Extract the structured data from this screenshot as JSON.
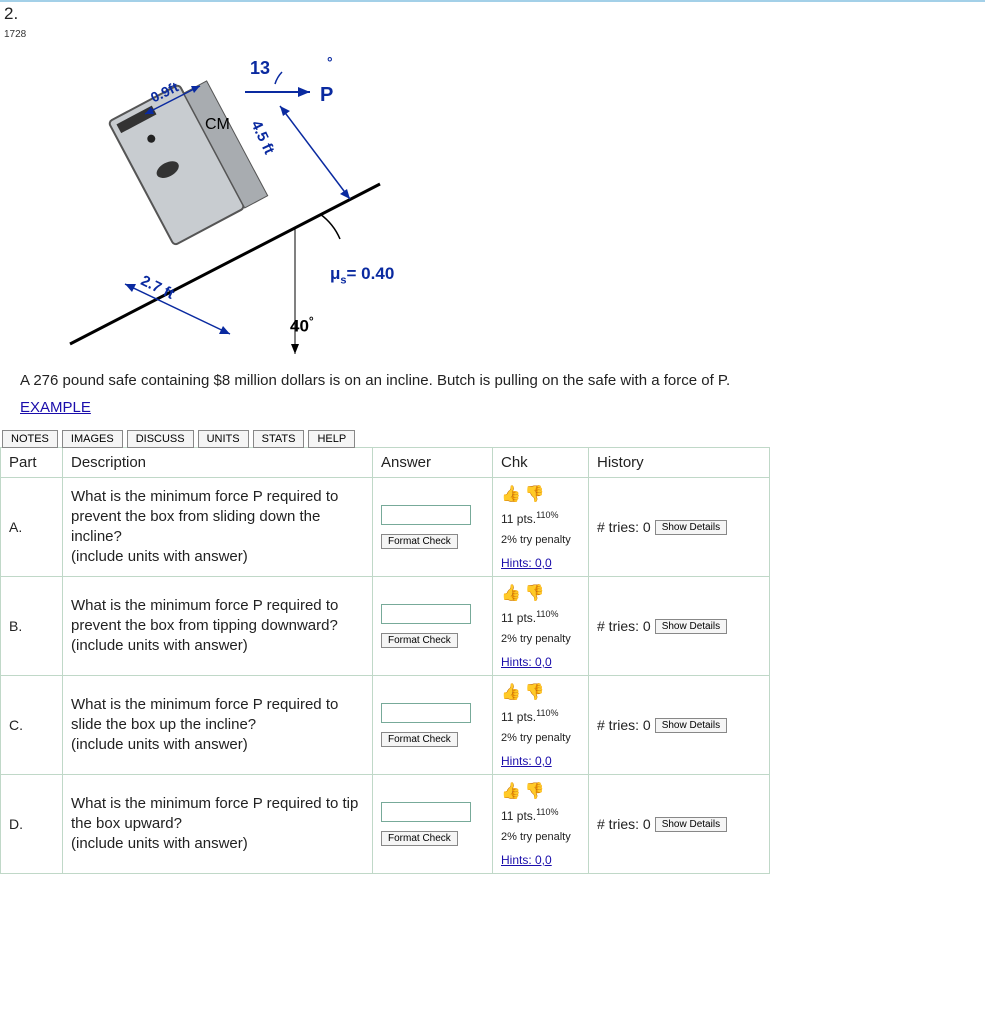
{
  "question": {
    "number": "2.",
    "points": "1728",
    "problem_text": "A 276 pound safe containing $8 million dollars is on an incline. Butch is pulling on the safe with a force of P.",
    "example_label": "EXAMPLE"
  },
  "diagram": {
    "dim_top": "0.9ft",
    "angle_top": "13",
    "angle_top_deg": "°",
    "force_label": "P",
    "cm_label": "CM",
    "height": "4.5 ft",
    "base": "2.7 ft",
    "mu_label": "μ",
    "mu_sub": "s",
    "mu_eq": "= 0.40",
    "incline_angle": "40",
    "incline_deg": "°",
    "colors": {
      "label_blue": "#0a2aa0",
      "black": "#000000"
    }
  },
  "tabs": [
    "NOTES",
    "IMAGES",
    "DISCUSS",
    "UNITS",
    "STATS",
    "HELP"
  ],
  "table": {
    "headers": {
      "part": "Part",
      "desc": "Description",
      "ans": "Answer",
      "chk": "Chk",
      "hist": "History"
    },
    "format_check_label": "Format Check",
    "show_details_label": "Show Details",
    "pts_prefix": "11 pts.",
    "pts_pct": "110%",
    "penalty_text": "2% try penalty",
    "hints_text": "Hints: 0,0",
    "tries_prefix": "# tries: 0",
    "rows": [
      {
        "part": "A.",
        "desc": "What is the minimum force P required to prevent the box from sliding down the incline?\n(include units with answer)"
      },
      {
        "part": "B.",
        "desc": "What is the minimum force P required to prevent the box from tipping downward?\n(include units with answer)"
      },
      {
        "part": "C.",
        "desc": "What is the minimum force P required to slide the box up the incline?\n(include units with answer)"
      },
      {
        "part": "D.",
        "desc": "What is the minimum force P required to tip the box upward?\n(include units with answer)"
      }
    ]
  },
  "style": {
    "border_color": "#c0d8c8",
    "link_color": "#1a0dab",
    "header_border": "#a3d0e8"
  }
}
